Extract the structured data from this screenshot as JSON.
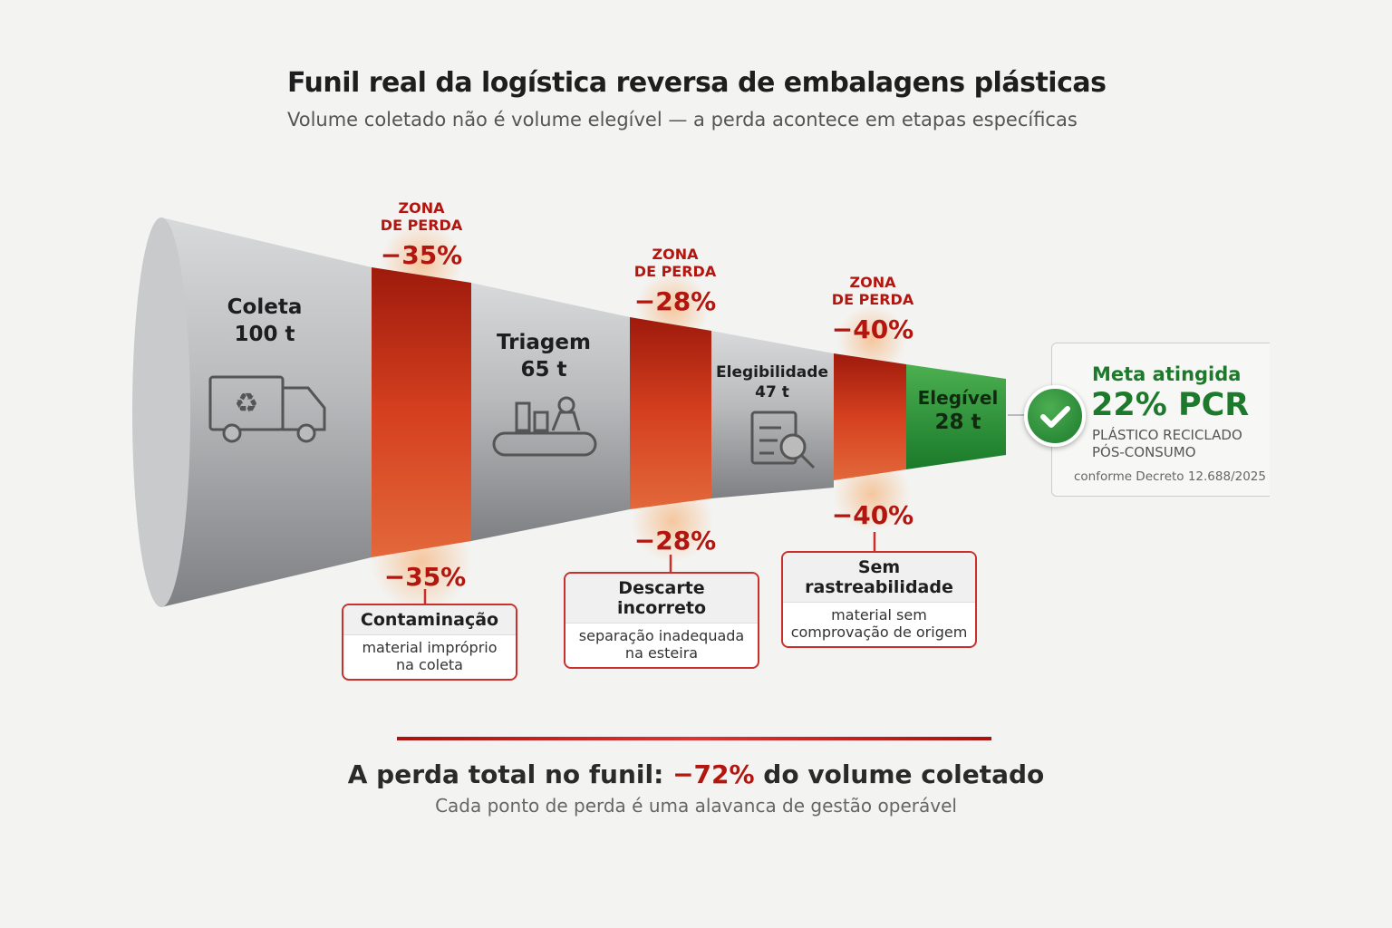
{
  "title": "Funil real da logística reversa de embalagens plásticas",
  "subtitle": "Volume coletado não é volume elegível — a perda acontece em etapas específicas",
  "stages": [
    {
      "name": "Coleta",
      "value": "100 t",
      "icon": "recycling-truck-icon"
    },
    {
      "name": "Triagem",
      "value": "65 t",
      "icon": "sorting-conveyor-icon"
    },
    {
      "name": "Elegibilidade",
      "value": "47 t",
      "icon": "checklist-magnifier-icon"
    },
    {
      "name": "Elegível",
      "value": "28 t"
    }
  ],
  "loss_zones": [
    {
      "label_line1": "ZONA",
      "label_line2": "DE PERDA",
      "pct": "−35%",
      "pct_below": "−35%",
      "cause_title": "Contaminação",
      "cause_desc": "material impróprio na coleta"
    },
    {
      "label_line1": "ZONA",
      "label_line2": "DE PERDA",
      "pct": "−28%",
      "pct_below": "−28%",
      "cause_title": "Descarte incorreto",
      "cause_desc": "separação inadequada na esteira"
    },
    {
      "label_line1": "ZONA",
      "label_line2": "DE PERDA",
      "pct": "−40%",
      "pct_below": "−40%",
      "cause_title": "Sem rastreabilidade",
      "cause_desc": "material sem comprovação de origem"
    }
  ],
  "goal": {
    "heading": "Meta atingida",
    "value": "22% PCR",
    "line1": "PLÁSTICO RECICLADO",
    "line2": "PÓS-CONSUMO",
    "note": "conforme Decreto 12.688/2025",
    "icon": "check-icon"
  },
  "summary": {
    "prefix": "A perda total no funil:",
    "highlight": "−72%",
    "suffix": "do volume coletado",
    "note": "Cada ponto de perda é uma alavanca de gestão operável"
  },
  "colors": {
    "loss": "#b3150f",
    "goal": "#1d7a2c",
    "funnel": "#a8a9ab"
  }
}
